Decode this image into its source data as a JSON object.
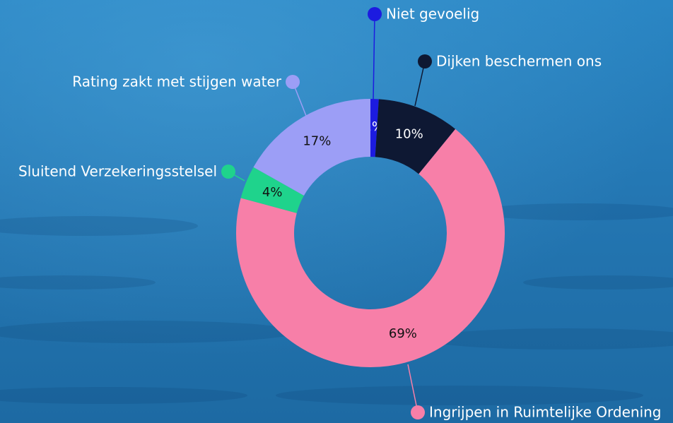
{
  "chart_data": {
    "type": "donut",
    "categories": [
      "Niet gevoelig",
      "Dijken beschermen ons",
      "Ingrijpen in Ruimtelijke Ordening",
      "Sluitend Verzekeringsstelsel",
      "Rating zakt met stijgen water"
    ],
    "values": [
      1,
      10,
      69,
      4,
      17
    ],
    "value_labels": [
      "1%",
      "10%",
      "69%",
      "4%",
      "17%"
    ],
    "colors": [
      "#1c1be0",
      "#0e1833",
      "#f77fa8",
      "#1fd38c",
      "#9c9ef6"
    ]
  }
}
